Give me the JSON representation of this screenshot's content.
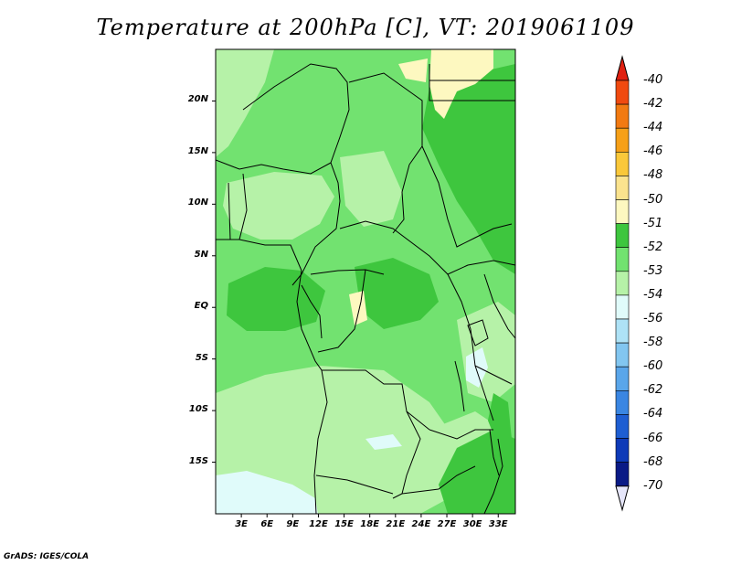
{
  "title": "Temperature at 200hPa [C], VT: 2019061109",
  "credit": "GrADS: IGES/COLA",
  "map": {
    "lon_range": [
      0,
      35
    ],
    "lat_range": [
      -20,
      25
    ],
    "lat_ticks": [
      {
        "value": 20,
        "label": "20N"
      },
      {
        "value": 15,
        "label": "15N"
      },
      {
        "value": 10,
        "label": "10N"
      },
      {
        "value": 5,
        "label": "5N"
      },
      {
        "value": 0,
        "label": "EQ"
      },
      {
        "value": -5,
        "label": "5S"
      },
      {
        "value": -10,
        "label": "10S"
      },
      {
        "value": -15,
        "label": "15S"
      }
    ],
    "lon_ticks": [
      {
        "value": 3,
        "label": "3E"
      },
      {
        "value": 6,
        "label": "6E"
      },
      {
        "value": 9,
        "label": "9E"
      },
      {
        "value": 12,
        "label": "12E"
      },
      {
        "value": 15,
        "label": "15E"
      },
      {
        "value": 18,
        "label": "18E"
      },
      {
        "value": 21,
        "label": "21E"
      },
      {
        "value": 24,
        "label": "24E"
      },
      {
        "value": 27,
        "label": "27E"
      },
      {
        "value": 30,
        "label": "30E"
      },
      {
        "value": 33,
        "label": "33E"
      }
    ]
  },
  "colorbar": {
    "levels": [
      {
        "label": "-40",
        "color": "#f02010"
      },
      {
        "label": "-42",
        "color": "#f04a10"
      },
      {
        "label": "-44",
        "color": "#f27a12"
      },
      {
        "label": "-46",
        "color": "#f6a018"
      },
      {
        "label": "-48",
        "color": "#fac83a"
      },
      {
        "label": "-50",
        "color": "#fbe38e"
      },
      {
        "label": "-51",
        "color": "#fdf8c0"
      },
      {
        "label": "-52",
        "color": "#3ec63e"
      },
      {
        "label": "-53",
        "color": "#72e270"
      },
      {
        "label": "-54",
        "color": "#b6f2a8"
      },
      {
        "label": "-56",
        "color": "#e0fbfa"
      },
      {
        "label": "-58",
        "color": "#aee2f6"
      },
      {
        "label": "-60",
        "color": "#82c6f0"
      },
      {
        "label": "-62",
        "color": "#5aa6ea"
      },
      {
        "label": "-64",
        "color": "#3a86e2"
      },
      {
        "label": "-66",
        "color": "#1e5ed2"
      },
      {
        "label": "-68",
        "color": "#0e3ab8"
      },
      {
        "label": "-70",
        "color": "#0a1a86"
      }
    ],
    "top_color": "#e02010",
    "bottom_color": "#e6e6fa"
  }
}
